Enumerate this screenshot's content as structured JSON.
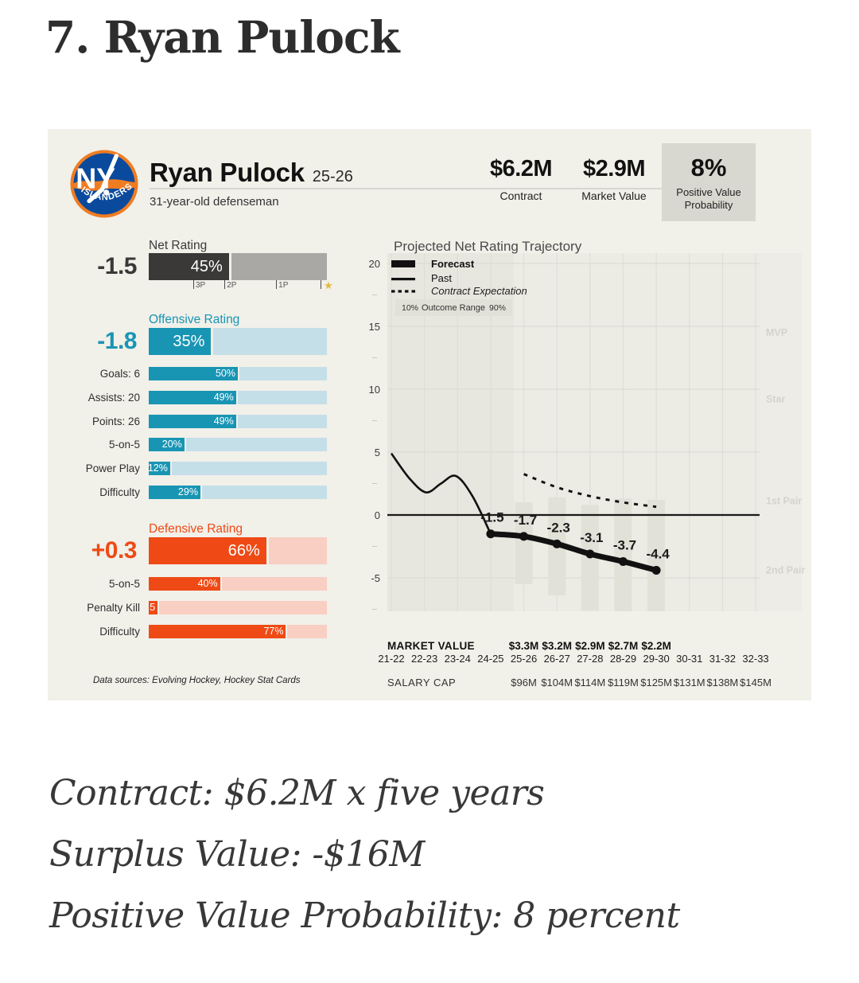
{
  "page": {
    "heading": "7. Ryan Pulock",
    "footer": [
      "Contract: $6.2M x five years",
      "Surplus Value: -$16M",
      "Positive Value Probability: 8 percent"
    ]
  },
  "card": {
    "team": "New York Islanders",
    "team_monogram": "NY",
    "team_arc": "ISLANDERS",
    "player": {
      "name": "Ryan Pulock",
      "season": "25-26",
      "bio": "31-year-old defenseman"
    },
    "stats": [
      {
        "value": "$6.2M",
        "label": "Contract"
      },
      {
        "value": "$2.9M",
        "label": "Market Value"
      }
    ],
    "pvp": {
      "value": "8%",
      "lines": [
        "Positive Value",
        "Probability"
      ]
    },
    "net_rating": {
      "label": "Net Rating",
      "value": "-1.5",
      "pct": 45,
      "pct_label": "45%",
      "markers": [
        {
          "label": "3P",
          "pos": 25
        },
        {
          "label": "2P",
          "pos": 42.5
        },
        {
          "label": "1P",
          "pos": 71.5
        }
      ],
      "star_pos": 96.5
    },
    "offense": {
      "label": "Offensive Rating",
      "value": "-1.8",
      "pct": 35,
      "pct_label": "35%",
      "rows": [
        {
          "label": "Goals: 6",
          "pct": 50,
          "pct_label": "50%"
        },
        {
          "label": "Assists: 20",
          "pct": 49,
          "pct_label": "49%"
        },
        {
          "label": "Points: 26",
          "pct": 49,
          "pct_label": "49%"
        },
        {
          "label": "5-on-5",
          "pct": 20,
          "pct_label": "20%"
        },
        {
          "label": "Power Play",
          "pct": 12,
          "pct_label": "12%"
        },
        {
          "label": "Difficulty",
          "pct": 29,
          "pct_label": "29%"
        }
      ]
    },
    "defense": {
      "label": "Defensive Rating",
      "value": "+0.3",
      "pct": 66,
      "pct_label": "66%",
      "rows": [
        {
          "label": "5-on-5",
          "pct": 40,
          "pct_label": "40%"
        },
        {
          "label": "Penalty Kill",
          "pct": 5,
          "pct_label": "5"
        },
        {
          "label": "Difficulty",
          "pct": 77,
          "pct_label": "77%"
        }
      ]
    },
    "data_sources": "Data sources: Evolving Hockey, Hockey Stat Cards"
  },
  "chart_data": {
    "type": "line",
    "title": "Projected Net Rating Trajectory",
    "x_categories": [
      "21-22",
      "22-23",
      "23-24",
      "24-25",
      "25-26",
      "26-27",
      "27-28",
      "28-29",
      "29-30",
      "30-31",
      "31-32",
      "32-33"
    ],
    "yticks": [
      20,
      15,
      10,
      5,
      0,
      -5
    ],
    "ylim": [
      -7.7,
      20.8
    ],
    "right_labels": [
      {
        "text": "MVP",
        "value": 14.5
      },
      {
        "text": "Star",
        "value": 9.2
      },
      {
        "text": "1st Pair",
        "value": 1.1
      },
      {
        "text": "2nd Pair",
        "value": -4.4
      }
    ],
    "legend": {
      "forecast": "Forecast",
      "past": "Past",
      "contract": "Contract Expectation",
      "outcome_low": "10%",
      "outcome_label": "Outcome Range",
      "outcome_high": "90%"
    },
    "series": [
      {
        "name": "Past",
        "x": [
          0,
          0.55,
          1.05,
          1.5,
          1.95,
          2.45,
          3
        ],
        "y": [
          4.9,
          2.9,
          1.8,
          2.5,
          3.1,
          1.5,
          -1.5
        ]
      },
      {
        "name": "Forecast",
        "x": [
          3,
          4,
          5,
          6,
          7,
          8
        ],
        "y": [
          -1.5,
          -1.7,
          -2.3,
          -3.1,
          -3.7,
          -4.4
        ],
        "labels": [
          "-1.5",
          "-1.7",
          "-2.3",
          "-3.1",
          "-3.7",
          "-4.4"
        ]
      },
      {
        "name": "Contract Expectation",
        "x": [
          4,
          5,
          6,
          7,
          8
        ],
        "y": [
          3.25,
          2.2,
          1.5,
          1.0,
          0.65
        ]
      }
    ],
    "outcome_ranges": [
      {
        "x": 4,
        "low": -5.5,
        "high": 1.0
      },
      {
        "x": 5,
        "low": -6.4,
        "high": 1.4
      },
      {
        "x": 6,
        "low": -7.6,
        "high": 0.8
      },
      {
        "x": 7,
        "low": -7.7,
        "high": 1.3
      },
      {
        "x": 8,
        "low": -7.7,
        "high": 1.2
      }
    ],
    "market_value_label": "MARKET VALUE",
    "market_values": [
      {
        "x": 4,
        "text": "$3.3M"
      },
      {
        "x": 5,
        "text": "$3.2M"
      },
      {
        "x": 6,
        "text": "$2.9M"
      },
      {
        "x": 7,
        "text": "$2.7M"
      },
      {
        "x": 8,
        "text": "$2.2M"
      }
    ],
    "salary_cap_label": "SALARY CAP",
    "salary_caps": [
      {
        "x": 4,
        "text": "$96M"
      },
      {
        "x": 5,
        "text": "$104M"
      },
      {
        "x": 6,
        "text": "$114M"
      },
      {
        "x": 7,
        "text": "$119M"
      },
      {
        "x": 8,
        "text": "$125M"
      },
      {
        "x": 9,
        "text": "$131M"
      },
      {
        "x": 10,
        "text": "$138M"
      },
      {
        "x": 11,
        "text": "$145M"
      }
    ]
  }
}
